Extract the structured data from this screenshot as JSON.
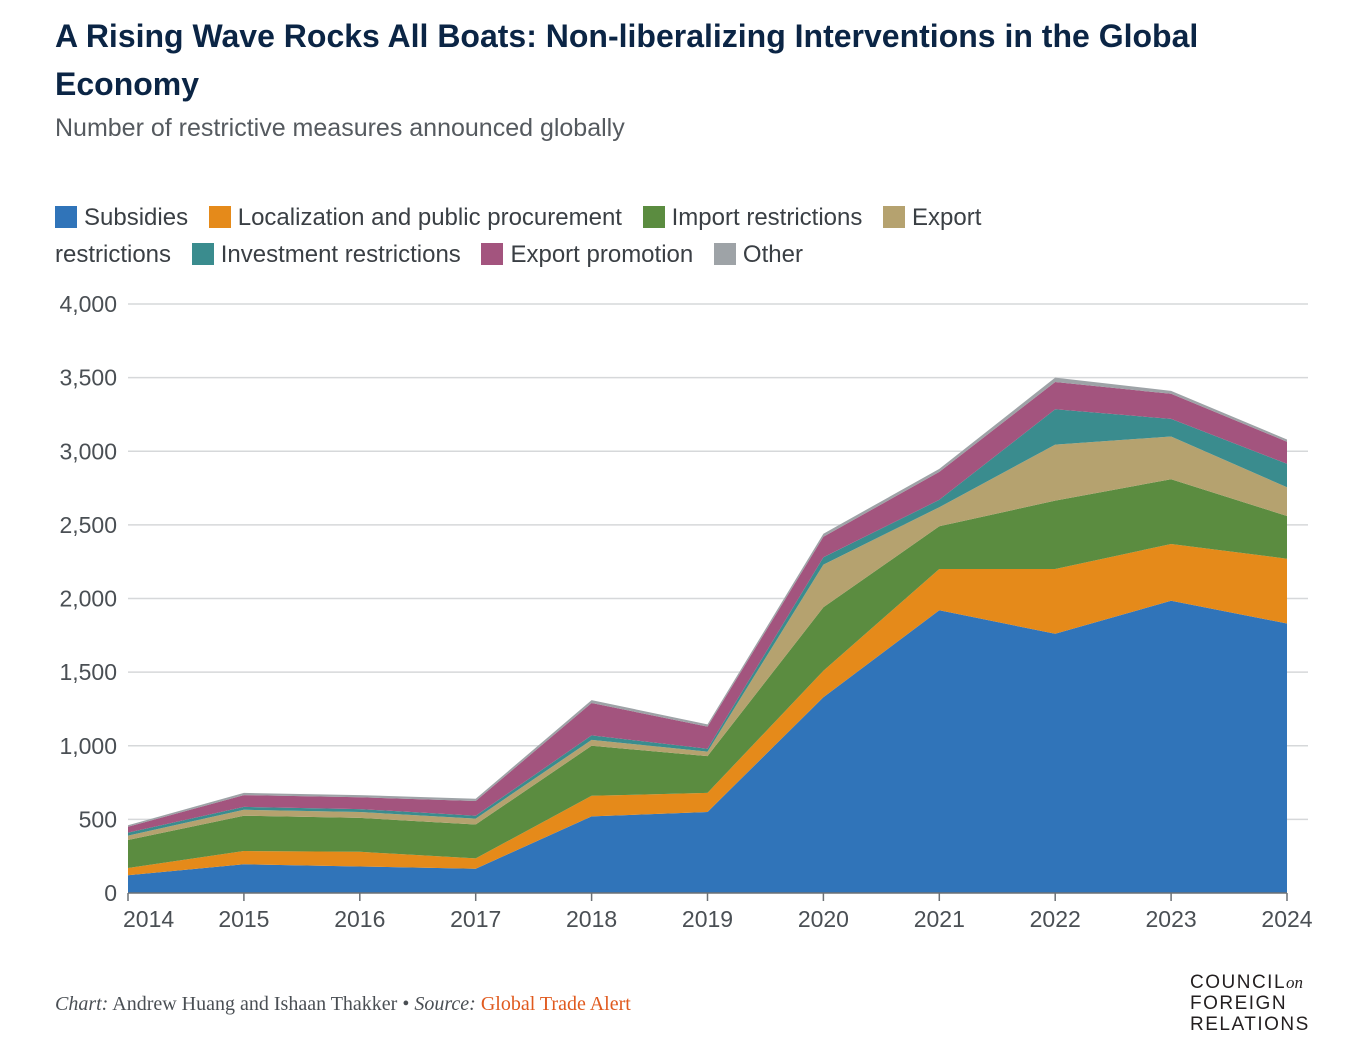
{
  "header": {
    "title": "A Rising Wave Rocks All Boats: Non-liberalizing Interventions in the Global Economy",
    "subtitle": "Number of restrictive measures announced globally"
  },
  "chart_data": {
    "type": "area",
    "stacked": true,
    "x": [
      "2014",
      "2015",
      "2016",
      "2017",
      "2018",
      "2019",
      "2020",
      "2021",
      "2022",
      "2023",
      "2024"
    ],
    "ylim": [
      0,
      4000
    ],
    "yticks": [
      "0",
      "500",
      "1,000",
      "1,500",
      "2,000",
      "2,500",
      "3,000",
      "3,500",
      "4,000"
    ],
    "ytick_values": [
      0,
      500,
      1000,
      1500,
      2000,
      2500,
      3000,
      3500,
      4000
    ],
    "grid": true,
    "legend_position": "top",
    "series": [
      {
        "name": "Subsidies",
        "color": "#3074b9",
        "values": [
          120,
          195,
          180,
          165,
          520,
          550,
          1330,
          1920,
          1760,
          1985,
          1830
        ]
      },
      {
        "name": "Localization and public procurement",
        "color": "#e58a1a",
        "values": [
          50,
          90,
          100,
          70,
          140,
          130,
          180,
          280,
          440,
          385,
          440
        ]
      },
      {
        "name": "Import restrictions",
        "color": "#5b8c40",
        "values": [
          190,
          240,
          230,
          230,
          340,
          250,
          430,
          290,
          465,
          440,
          290
        ]
      },
      {
        "name": "Export restrictions",
        "color": "#b5a26f",
        "values": [
          30,
          40,
          40,
          40,
          40,
          30,
          290,
          130,
          380,
          290,
          195
        ]
      },
      {
        "name": "Investment restrictions",
        "color": "#3a8c8e",
        "values": [
          20,
          20,
          20,
          20,
          30,
          20,
          50,
          50,
          240,
          120,
          160
        ]
      },
      {
        "name": "Export promotion",
        "color": "#a3547e",
        "values": [
          40,
          80,
          80,
          100,
          220,
          150,
          140,
          190,
          185,
          170,
          150
        ]
      },
      {
        "name": "Other",
        "color": "#9ea3a7",
        "values": [
          10,
          15,
          15,
          15,
          20,
          15,
          20,
          20,
          30,
          20,
          15
        ]
      }
    ]
  },
  "footer": {
    "chart_label": "Chart:",
    "authors": "Andrew Huang and Ishaan Thakker",
    "separator": "•",
    "source_label": "Source:",
    "source_name": "Global Trade Alert"
  },
  "logo": {
    "line1": "COUNCIL",
    "line1_suffix": "on",
    "line2": "FOREIGN",
    "line3": "RELATIONS"
  }
}
